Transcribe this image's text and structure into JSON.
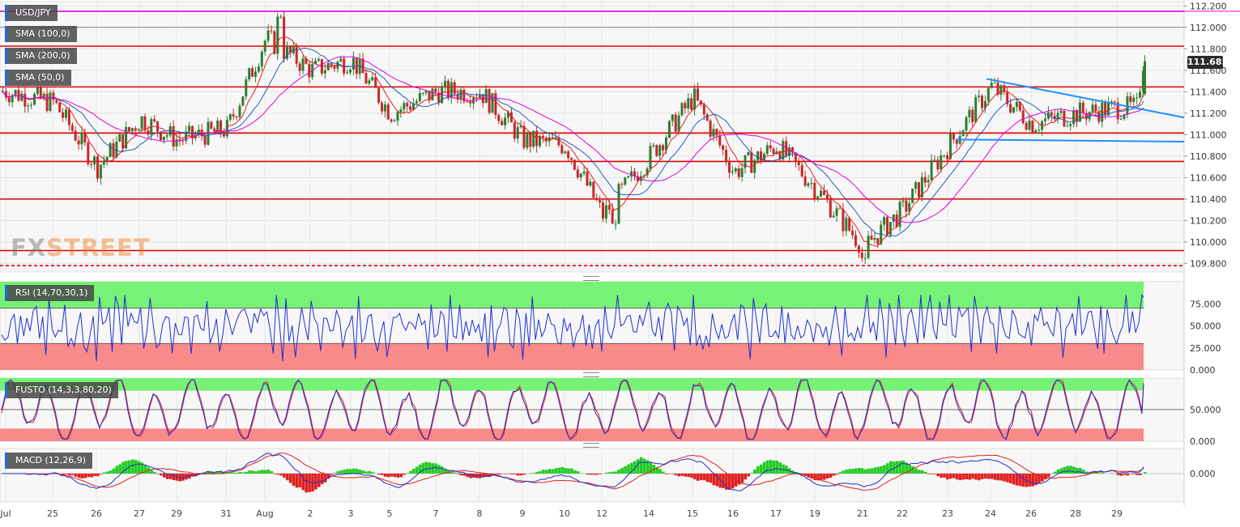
{
  "chart_data": [
    {
      "type": "candlestick",
      "name": "USD/JPY",
      "timeframe_hint": "hourly",
      "x_ticks": [
        "Jul",
        "25",
        "26",
        "27",
        "29",
        "31",
        "Aug",
        "2",
        "3",
        "5",
        "7",
        "8",
        "9",
        "10",
        "12",
        "14",
        "15",
        "16",
        "17",
        "19",
        "21",
        "22",
        "23",
        "24",
        "26",
        "28",
        "29"
      ],
      "y_ticks": [
        "112.200",
        "112.000",
        "111.800",
        "111.600",
        "111.400",
        "111.200",
        "111.000",
        "110.800",
        "110.600",
        "110.400",
        "110.200",
        "110.000",
        "109.800"
      ],
      "ylim": [
        109.72,
        112.24
      ],
      "last_price": "111.685",
      "key_points": [
        {
          "label": "Jul",
          "open": 111.4
        },
        {
          "label": "25",
          "value": 111.3
        },
        {
          "label": "26",
          "value": 110.7
        },
        {
          "label": "27",
          "value": 111.15
        },
        {
          "label": "29",
          "value": 110.95
        },
        {
          "label": "31",
          "value": 111.05
        },
        {
          "label": "Aug",
          "value": 111.9,
          "high": 112.15
        },
        {
          "label": "2",
          "value": 111.6
        },
        {
          "label": "3",
          "value": 111.7
        },
        {
          "label": "5",
          "value": 111.2
        },
        {
          "label": "7",
          "value": 111.4
        },
        {
          "label": "8",
          "value": 111.4
        },
        {
          "label": "9",
          "value": 110.95
        },
        {
          "label": "10",
          "value": 110.9
        },
        {
          "label": "12",
          "value": 110.25,
          "low": 110.12
        },
        {
          "label": "14",
          "value": 110.8
        },
        {
          "label": "15",
          "value": 111.35
        },
        {
          "label": "16",
          "value": 110.65
        },
        {
          "label": "17",
          "value": 110.9
        },
        {
          "label": "19",
          "value": 110.5
        },
        {
          "label": "21",
          "value": 109.95,
          "low": 109.78
        },
        {
          "label": "22",
          "value": 110.3
        },
        {
          "label": "23",
          "value": 110.9
        },
        {
          "label": "24",
          "value": 111.45,
          "high": 111.5
        },
        {
          "label": "26",
          "value": 111.1
        },
        {
          "label": "28",
          "value": 111.2
        },
        {
          "label": "29",
          "value": 111.25,
          "close": 111.685
        }
      ],
      "indicators": [
        {
          "name": "SMA (100,0)",
          "color": "#1f5fbf"
        },
        {
          "name": "SMA (200,0)",
          "color": "#e000e0"
        },
        {
          "name": "SMA (50,0)",
          "color": "#e02020"
        }
      ],
      "horizontal_levels": [
        {
          "value": 112.15,
          "color": "#e000e0",
          "style": "solid"
        },
        {
          "value": 112.0,
          "color": "#888888",
          "style": "solid"
        },
        {
          "value": 111.825,
          "color": "#e00000",
          "style": "solid"
        },
        {
          "value": 111.445,
          "color": "#e00000",
          "style": "solid"
        },
        {
          "value": 111.015,
          "color": "#e00000",
          "style": "solid"
        },
        {
          "value": 110.75,
          "color": "#e00000",
          "style": "solid"
        },
        {
          "value": 110.4,
          "color": "#e00000",
          "style": "solid"
        },
        {
          "value": 109.92,
          "color": "#e00000",
          "style": "solid"
        },
        {
          "value": 109.78,
          "color": "#e00000",
          "style": "dashed"
        }
      ],
      "trendlines": [
        {
          "from": [
            "24",
            111.52
          ],
          "to": [
            "29+",
            111.16
          ],
          "color": "#1e90ff"
        },
        {
          "from": [
            "23",
            110.95
          ],
          "to": [
            "29+",
            110.935
          ],
          "color": "#1e90ff"
        }
      ]
    },
    {
      "type": "line",
      "name": "RSI (14,70,30,1)",
      "y_ticks": [
        "75.000",
        "50.000",
        "25.000",
        "0.000"
      ],
      "ylim": [
        0,
        100
      ],
      "zones": {
        "overbought": 70,
        "oversold": 30
      },
      "series_color": "#1f2fd0",
      "last_value": 82
    },
    {
      "type": "line",
      "name": "FUSTO (14,3,3,80,20)",
      "y_ticks": [
        "50.000",
        "0.000"
      ],
      "ylim": [
        0,
        100
      ],
      "zones": {
        "overbought": 80,
        "oversold": 20
      },
      "series_colors": [
        "#1f2fd0",
        "#e02020"
      ],
      "last_value": 90
    },
    {
      "type": "histogram",
      "name": "MACD (12,26,9)",
      "y_ticks": [
        "0.000"
      ],
      "series_colors": [
        "#1f2fd0",
        "#e02020",
        "#22cc22"
      ]
    }
  ],
  "labels": {
    "symbol": "USD/JPY",
    "sma100": "SMA (100,0)",
    "sma200": "SMA (200,0)",
    "sma50": "SMA (50,0)",
    "rsi": "RSI (14,70,30,1)",
    "fusto": "FUSTO (14,3,3,80,20)",
    "macd": "MACD (12,26,9)",
    "price_badge": "111.685",
    "watermark_a": "FX",
    "watermark_b": "STREET"
  },
  "colors": {
    "up_candle": "#2e7d32",
    "down_candle": "#c62828",
    "sma50": "#e02020",
    "sma100": "#1f5fbf",
    "sma200": "#e000e0",
    "rsi_line": "#1f2fd0",
    "zone_green": "#76f276",
    "zone_red": "#f98a8a"
  }
}
